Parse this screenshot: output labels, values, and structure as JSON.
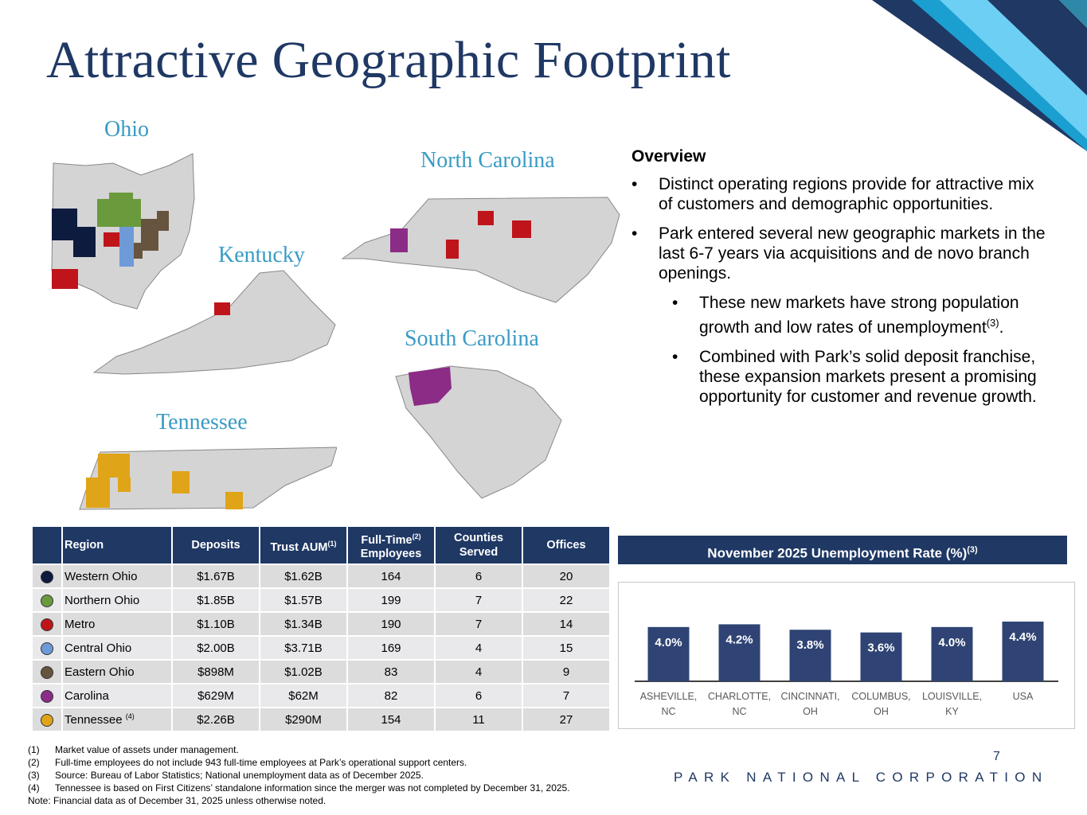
{
  "title": "Attractive Geographic Footprint",
  "maps": {
    "ohio": "Ohio",
    "north_carolina": "North Carolina",
    "kentucky": "Kentucky",
    "south_carolina": "South Carolina",
    "tennessee": "Tennessee"
  },
  "overview": {
    "heading": "Overview",
    "bullet1": "Distinct operating regions provide for attractive mix of customers and demographic opportunities.",
    "bullet2": "Park entered several new geographic markets in the last 6-7 years via acquisitions and de novo branch openings.",
    "sub1": "These new markets have strong population growth and low rates of unemployment",
    "sub1_sup": "(3)",
    "sub1_end": ".",
    "sub2": "Combined with Park’s solid deposit franchise, these expansion markets present a promising opportunity for customer and revenue growth."
  },
  "table": {
    "headers": {
      "region": "Region",
      "deposits": "Deposits",
      "trust": "Trust AUM",
      "trust_sup": "(1)",
      "fte": "Full-Time",
      "fte_sup": "(2)",
      "fte2": "Employees",
      "counties": "Counties",
      "counties2": "Served",
      "offices": "Offices"
    },
    "rows": [
      {
        "color": "#0d1b3e",
        "region": "Western Ohio",
        "deposits": "$1.67B",
        "trust": "$1.62B",
        "fte": "164",
        "counties": "6",
        "offices": "20"
      },
      {
        "color": "#6a9a3c",
        "region": "Northern Ohio",
        "deposits": "$1.85B",
        "trust": "$1.57B",
        "fte": "199",
        "counties": "7",
        "offices": "22"
      },
      {
        "color": "#c0141b",
        "region": "Metro",
        "deposits": "$1.10B",
        "trust": "$1.34B",
        "fte": "190",
        "counties": "7",
        "offices": "14"
      },
      {
        "color": "#6f9ad8",
        "region": "Central Ohio",
        "deposits": "$2.00B",
        "trust": "$3.71B",
        "fte": "169",
        "counties": "4",
        "offices": "15"
      },
      {
        "color": "#66543f",
        "region": "Eastern Ohio",
        "deposits": "$898M",
        "trust": "$1.02B",
        "fte": "83",
        "counties": "4",
        "offices": "9"
      },
      {
        "color": "#8b2c86",
        "region": "Carolina",
        "deposits": "$629M",
        "trust": "$62M",
        "fte": "82",
        "counties": "6",
        "offices": "7"
      },
      {
        "color": "#e0a418",
        "region": "Tennessee",
        "sup": "(4)",
        "deposits": "$2.26B",
        "trust": "$290M",
        "fte": "154",
        "counties": "11",
        "offices": "27"
      }
    ]
  },
  "chart_title": "November 2025 Unemployment Rate (%)",
  "chart_title_sup": "(3)",
  "chart_data": {
    "type": "bar",
    "title": "November 2025 Unemployment Rate (%)",
    "categories": [
      "ASHEVILLE, NC",
      "CHARLOTTE, NC",
      "CINCINNATI, OH",
      "COLUMBUS, OH",
      "LOUISVILLE, KY",
      "USA"
    ],
    "category_lines": [
      [
        "ASHEVILLE,",
        "NC"
      ],
      [
        "CHARLOTTE,",
        "NC"
      ],
      [
        "CINCINNATI,",
        "OH"
      ],
      [
        "COLUMBUS,",
        "OH"
      ],
      [
        "LOUISVILLE,",
        "KY"
      ],
      [
        "USA"
      ]
    ],
    "values": [
      4.0,
      4.2,
      3.8,
      3.6,
      4.0,
      4.4
    ],
    "data_labels": [
      "4.0%",
      "4.2%",
      "3.8%",
      "3.6%",
      "4.0%",
      "4.4%"
    ],
    "bar_color": "#2f4474",
    "grid": false
  },
  "notes": [
    {
      "k": "(1)",
      "t": "Market value of assets under management."
    },
    {
      "k": "(2)",
      "t": "Full-time employees do not include 943 full-time employees at Park’s operational support centers."
    },
    {
      "k": "(3)",
      "t": "Source: Bureau of Labor Statistics; National unemployment data as of December 2025."
    },
    {
      "k": "(4)",
      "t": "Tennessee is based on First Citizens’ standalone information since the merger was not completed by December 31, 2025."
    }
  ],
  "note_final": "Note: Financial data as of December 31, 2025 unless otherwise noted.",
  "page_number": "7",
  "brand": "PARK NATIONAL CORPORATION",
  "colors": {
    "navy": "#1f3864",
    "accent_blue": "#3a9bc4",
    "map_gray": "#d4d4d4"
  }
}
